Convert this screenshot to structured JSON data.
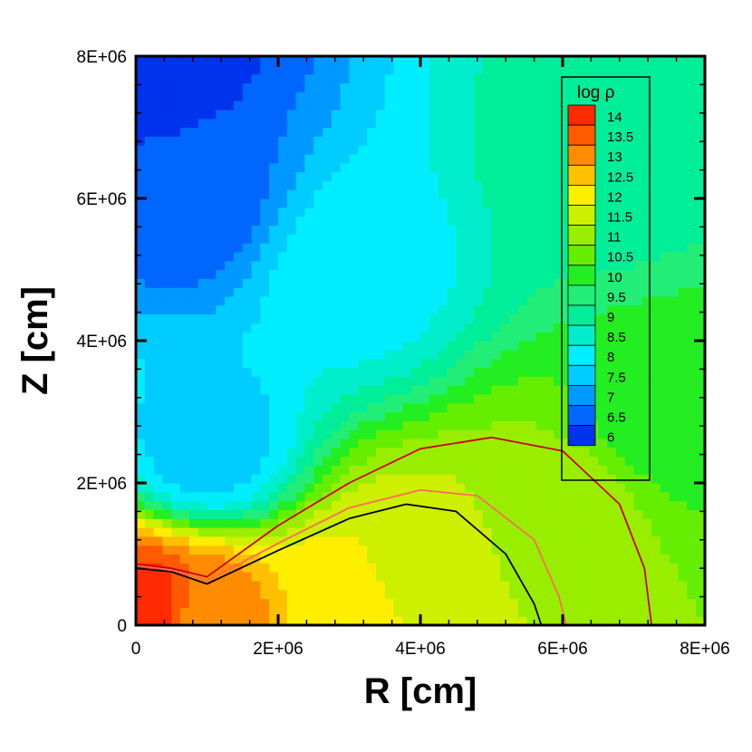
{
  "chart_data": {
    "type": "heatmap",
    "title": "",
    "xlabel": "R [cm]",
    "ylabel": "Z [cm]",
    "xlim": [
      0,
      8000000
    ],
    "ylim": [
      0,
      8000000
    ],
    "x_ticks": [
      "0",
      "2E+06",
      "4E+06",
      "6E+06",
      "8E+06"
    ],
    "y_ticks": [
      "0",
      "2E+06",
      "4E+06",
      "6E+06",
      "8E+06"
    ],
    "legend": {
      "title": "log ρ",
      "placement": "top-right",
      "levels": [
        "14",
        "13.5",
        "13",
        "12.5",
        "12",
        "11.5",
        "11",
        "10.5",
        "10",
        "9.5",
        "9",
        "8.5",
        "8",
        "7.5",
        "7",
        "6.5",
        "6"
      ],
      "colors": [
        "#ff2a00",
        "#ff5a00",
        "#ff8c00",
        "#ffc000",
        "#ffee00",
        "#ccf000",
        "#99ee00",
        "#66ee00",
        "#22ee22",
        "#22ee77",
        "#00ee99",
        "#00eecc",
        "#00eeff",
        "#00ccff",
        "#0099ff",
        "#0066ff",
        "#0033ee"
      ]
    },
    "field_points_log_rho": [
      {
        "r": 200000,
        "z": 200000,
        "value": 14.0
      },
      {
        "r": 1000000,
        "z": 100000,
        "value": 13.0
      },
      {
        "r": 3000000,
        "z": 300000,
        "value": 12.0
      },
      {
        "r": 4000000,
        "z": 800000,
        "value": 11.5
      },
      {
        "r": 6000000,
        "z": 1500000,
        "value": 11.0
      },
      {
        "r": 7500000,
        "z": 3000000,
        "value": 10.0
      },
      {
        "r": 6500000,
        "z": 6500000,
        "value": 9.0
      },
      {
        "r": 3000000,
        "z": 5000000,
        "value": 8.0
      },
      {
        "r": 1000000,
        "z": 2500000,
        "value": 7.5
      },
      {
        "r": 800000,
        "z": 6000000,
        "value": 6.5
      },
      {
        "r": 200000,
        "z": 7800000,
        "value": 6.0
      }
    ],
    "contour_lines": [
      {
        "color": "#000000",
        "r": [
          0,
          500000,
          1000000,
          2000000,
          3000000,
          3800000,
          4500000,
          5200000,
          5600000,
          5700000
        ],
        "z": [
          800000,
          750000,
          580000,
          1050000,
          1500000,
          1700000,
          1600000,
          1000000,
          300000,
          0
        ]
      },
      {
        "color": "#ff6a5a",
        "r": [
          0,
          500000,
          1000000,
          2000000,
          3000000,
          4000000,
          4800000,
          5600000,
          5950000,
          6050000
        ],
        "z": [
          840000,
          780000,
          620000,
          1150000,
          1650000,
          1900000,
          1820000,
          1200000,
          400000,
          0
        ]
      },
      {
        "color": "#cc0000",
        "r": [
          0,
          500000,
          1000000,
          2000000,
          3000000,
          4000000,
          5000000,
          6000000,
          6800000,
          7150000,
          7250000
        ],
        "z": [
          860000,
          800000,
          680000,
          1400000,
          2000000,
          2480000,
          2640000,
          2450000,
          1700000,
          800000,
          0
        ]
      }
    ]
  }
}
